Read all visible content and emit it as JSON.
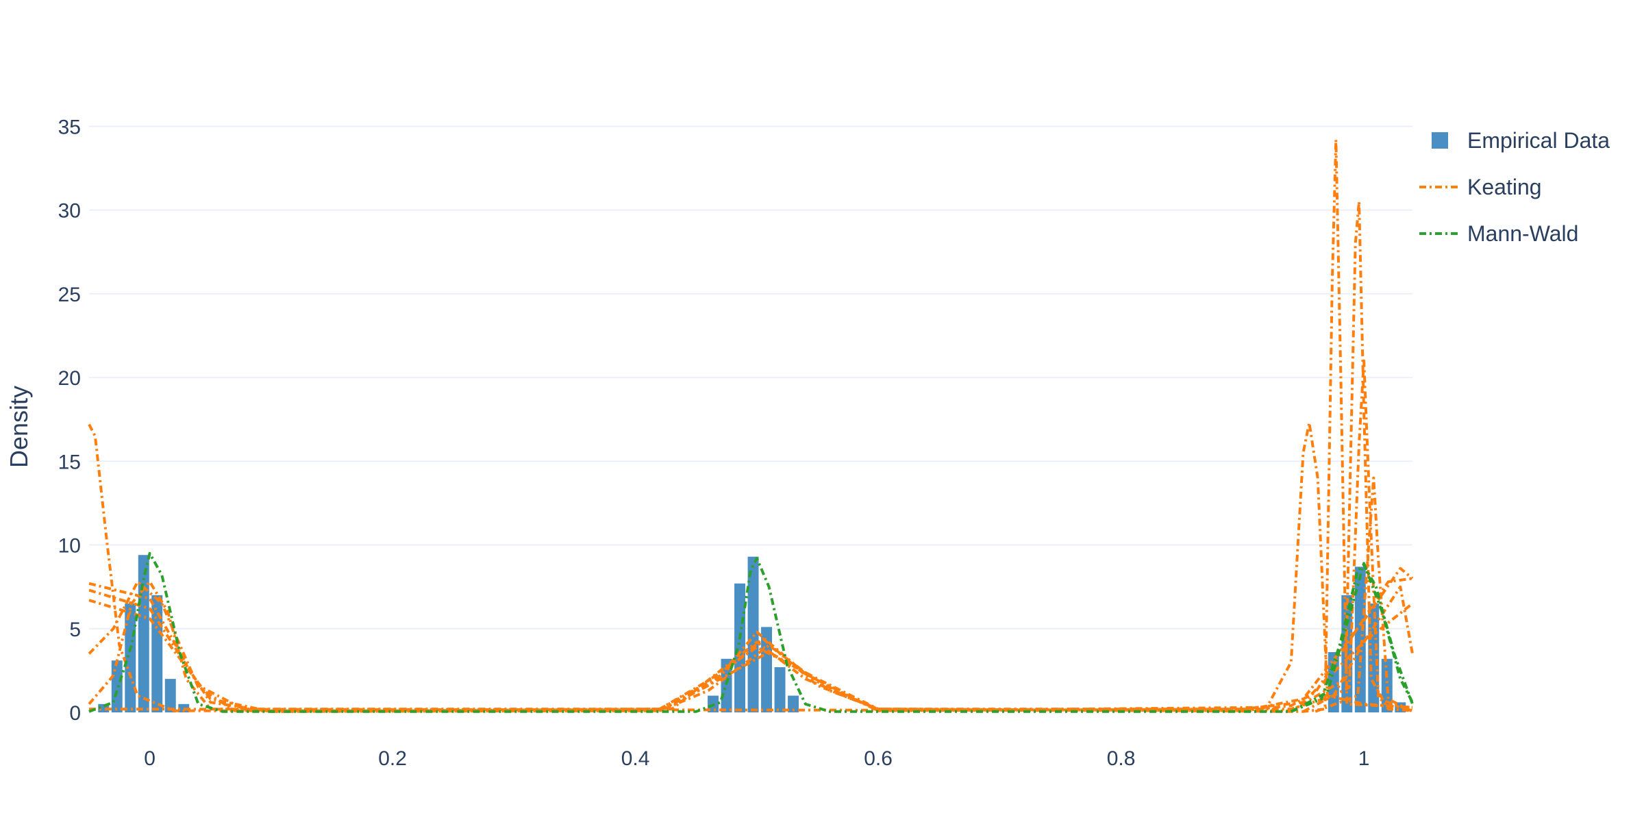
{
  "chart_data": {
    "type": "bar",
    "title": "",
    "xlabel": "",
    "ylabel": "Density",
    "xlim": [
      -0.05,
      1.04
    ],
    "ylim": [
      0,
      36
    ],
    "x_ticks": [
      0,
      0.2,
      0.4,
      0.6,
      0.8,
      1
    ],
    "x_tick_labels": [
      "0",
      "0.2",
      "0.4",
      "0.6",
      "0.8",
      "1"
    ],
    "y_ticks": [
      0,
      5,
      10,
      15,
      20,
      25,
      30,
      35
    ],
    "y_tick_labels": [
      "0",
      "5",
      "10",
      "15",
      "20",
      "25",
      "30",
      "35"
    ],
    "grid": true,
    "legend_position": "top-right",
    "colors": {
      "empirical": "#4a8fc4",
      "keating": "#ff7f0e",
      "mann_wald": "#2ca02c",
      "text": "#2a3f5f",
      "grid": "#ebf0f8"
    },
    "bar_width": 0.009,
    "series": [
      {
        "name": "Empirical Data",
        "kind": "bar",
        "x": [
          -0.038,
          -0.027,
          -0.016,
          -0.005,
          0.006,
          0.017,
          0.028,
          0.464,
          0.475,
          0.486,
          0.497,
          0.508,
          0.519,
          0.53,
          0.975,
          0.986,
          0.997,
          1.008,
          1.019,
          1.03
        ],
        "values": [
          0.5,
          3.1,
          6.5,
          9.4,
          7.0,
          2.0,
          0.5,
          1.0,
          3.2,
          7.7,
          9.3,
          5.1,
          2.7,
          1.0,
          3.6,
          7.0,
          8.7,
          6.5,
          3.2,
          0.6
        ]
      },
      {
        "name": "Keating",
        "kind": "curves",
        "dash": "10,5,3,5",
        "curves": [
          [
            [
              -0.05,
              7.3
            ],
            [
              0,
              6.2
            ],
            [
              0.05,
              0.6
            ],
            [
              0.1,
              0.05
            ],
            [
              0.42,
              0.1
            ],
            [
              0.46,
              1.3
            ],
            [
              0.51,
              4.0
            ],
            [
              0.56,
              1.3
            ],
            [
              0.6,
              0.2
            ],
            [
              0.9,
              0.1
            ],
            [
              0.94,
              0.4
            ],
            [
              0.96,
              1.2
            ],
            [
              0.99,
              4.5
            ],
            [
              1.02,
              7.8
            ],
            [
              1.04,
              8.0
            ]
          ],
          [
            [
              -0.05,
              7.7
            ],
            [
              0,
              6.8
            ],
            [
              0.04,
              1.6
            ],
            [
              0.08,
              0.1
            ],
            [
              0.42,
              0.1
            ],
            [
              0.46,
              1.6
            ],
            [
              0.505,
              4.4
            ],
            [
              0.55,
              1.6
            ],
            [
              0.6,
              0.2
            ],
            [
              0.9,
              0.1
            ],
            [
              0.95,
              0.8
            ],
            [
              1.0,
              5.5
            ],
            [
              1.03,
              8.6
            ],
            [
              1.04,
              8.0
            ]
          ],
          [
            [
              -0.05,
              6.7
            ],
            [
              0,
              5.6
            ],
            [
              0.05,
              0.8
            ],
            [
              0.1,
              0.05
            ],
            [
              0.42,
              0.2
            ],
            [
              0.47,
              2.2
            ],
            [
              0.5,
              4.8
            ],
            [
              0.54,
              2.3
            ],
            [
              0.6,
              0.1
            ],
            [
              0.9,
              0.2
            ],
            [
              0.95,
              0.6
            ],
            [
              1.0,
              4.2
            ],
            [
              1.04,
              6.5
            ]
          ],
          [
            [
              -0.05,
              0.5
            ],
            [
              -0.03,
              2.2
            ],
            [
              -0.015,
              6.5
            ],
            [
              0,
              7.8
            ],
            [
              0.015,
              6.0
            ],
            [
              0.03,
              2.0
            ],
            [
              0.05,
              0.2
            ],
            [
              0.43,
              0.2
            ],
            [
              0.47,
              2.5
            ],
            [
              0.5,
              4.2
            ],
            [
              0.54,
              2.0
            ],
            [
              0.6,
              0.2
            ],
            [
              0.94,
              0.2
            ],
            [
              0.975,
              1.0
            ],
            [
              1.0,
              4.2
            ],
            [
              1.03,
              7.5
            ],
            [
              1.04,
              3.5
            ]
          ],
          [
            [
              -0.05,
              17.2
            ],
            [
              -0.045,
              16.5
            ],
            [
              -0.035,
              10.0
            ],
            [
              -0.025,
              4.0
            ],
            [
              -0.01,
              1.0
            ],
            [
              0.02,
              0.1
            ],
            [
              0.42,
              0.1
            ],
            [
              0.47,
              2.0
            ],
            [
              0.51,
              3.6
            ],
            [
              0.56,
              1.5
            ],
            [
              0.6,
              0.1
            ],
            [
              0.92,
              0.3
            ],
            [
              0.94,
              3.0
            ],
            [
              0.95,
              15.5
            ],
            [
              0.955,
              17.3
            ],
            [
              0.962,
              14.0
            ],
            [
              0.97,
              1.0
            ],
            [
              1.0,
              0.5
            ],
            [
              1.04,
              0.3
            ]
          ],
          [
            [
              -0.05,
              3.5
            ],
            [
              -0.03,
              5.0
            ],
            [
              -0.01,
              7.8
            ],
            [
              0.01,
              6.5
            ],
            [
              0.04,
              1.5
            ],
            [
              0.07,
              0.1
            ],
            [
              0.42,
              0.2
            ],
            [
              0.46,
              1.9
            ],
            [
              0.5,
              3.9
            ],
            [
              0.55,
              2.0
            ],
            [
              0.6,
              0.2
            ],
            [
              0.95,
              0.05
            ],
            [
              0.968,
              0.2
            ],
            [
              0.974,
              26.0
            ],
            [
              0.977,
              34.2
            ],
            [
              0.981,
              20.0
            ],
            [
              0.986,
              0.5
            ],
            [
              1.04,
              0.3
            ]
          ],
          [
            [
              -0.05,
              0.2
            ],
            [
              0.94,
              0.1
            ],
            [
              0.985,
              2.0
            ],
            [
              0.993,
              28.0
            ],
            [
              0.996,
              30.5
            ],
            [
              1.0,
              18.0
            ],
            [
              1.006,
              2.0
            ],
            [
              1.02,
              0.2
            ],
            [
              1.04,
              0.1
            ]
          ],
          [
            [
              0.95,
              0.05
            ],
            [
              0.988,
              1.5
            ],
            [
              0.996,
              16.0
            ],
            [
              1.0,
              21.0
            ],
            [
              1.005,
              12.0
            ],
            [
              1.012,
              0.8
            ],
            [
              1.04,
              0.1
            ]
          ],
          [
            [
              0.96,
              0.05
            ],
            [
              0.995,
              1.0
            ],
            [
              1.004,
              10.0
            ],
            [
              1.008,
              14.0
            ],
            [
              1.012,
              9.0
            ],
            [
              1.02,
              0.8
            ],
            [
              1.04,
              0.05
            ]
          ]
        ]
      },
      {
        "name": "Mann-Wald",
        "kind": "curves",
        "dash": "10,5,3,5",
        "curves": [
          [
            [
              -0.05,
              0.05
            ],
            [
              -0.03,
              0.6
            ],
            [
              -0.015,
              4.0
            ],
            [
              -0.005,
              8.0
            ],
            [
              0,
              9.5
            ],
            [
              0.01,
              8.2
            ],
            [
              0.025,
              3.5
            ],
            [
              0.04,
              0.5
            ],
            [
              0.06,
              0.05
            ],
            [
              0.45,
              0.05
            ],
            [
              0.47,
              0.6
            ],
            [
              0.485,
              4.0
            ],
            [
              0.495,
              8.5
            ],
            [
              0.5,
              9.2
            ],
            [
              0.51,
              7.5
            ],
            [
              0.525,
              2.8
            ],
            [
              0.54,
              0.5
            ],
            [
              0.56,
              0.05
            ],
            [
              0.94,
              0.05
            ],
            [
              0.965,
              0.8
            ],
            [
              0.98,
              4.0
            ],
            [
              0.995,
              8.5
            ],
            [
              1.0,
              8.8
            ],
            [
              1.01,
              7.5
            ],
            [
              1.025,
              3.5
            ],
            [
              1.04,
              0.5
            ]
          ],
          [
            [
              0.94,
              0.05
            ],
            [
              0.97,
              1.2
            ],
            [
              0.985,
              5.0
            ],
            [
              1.0,
              8.9
            ],
            [
              1.015,
              6.0
            ],
            [
              1.03,
              2.0
            ],
            [
              1.04,
              0.6
            ]
          ]
        ]
      }
    ]
  }
}
